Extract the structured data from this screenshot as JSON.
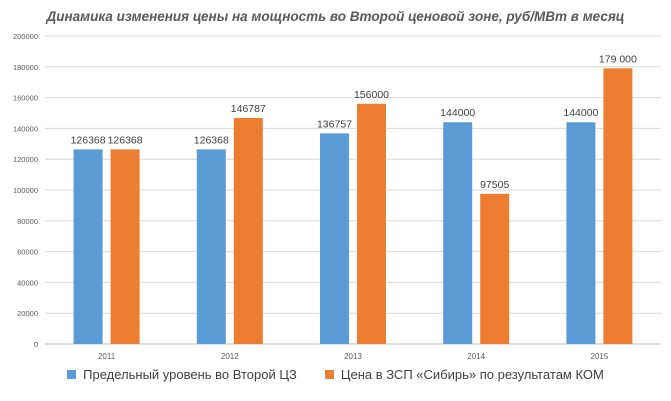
{
  "chart_data": {
    "type": "bar",
    "title": "Динамика изменения цены на мощность во Второй ценовой зоне, руб/МВт в месяц",
    "categories": [
      "2011",
      "2012",
      "2013",
      "2014",
      "2015"
    ],
    "series": [
      {
        "name": "Предельный уровень во Второй ЦЗ",
        "values": [
          126368,
          126368,
          136757,
          144000,
          144000
        ],
        "labels": [
          "126368",
          "126368",
          "136757",
          "144000",
          "144000"
        ],
        "color": "#5b9bd5"
      },
      {
        "name": "Цена в ЗСП «Сибирь» по результатам КОМ",
        "values": [
          126368,
          146787,
          156000,
          97505,
          179000
        ],
        "labels": [
          "126368",
          "146787",
          "156000",
          "97505",
          "179 000"
        ],
        "color": "#ed7d31"
      }
    ],
    "ylim": [
      0,
      200000
    ],
    "yticks": [
      0,
      20000,
      40000,
      60000,
      80000,
      100000,
      120000,
      140000,
      160000,
      180000,
      200000
    ],
    "grid": true,
    "legend_position": "bottom"
  }
}
